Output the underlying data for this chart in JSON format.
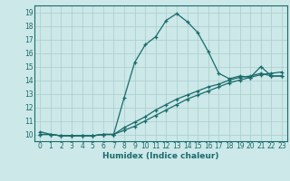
{
  "xlabel": "Humidex (Indice chaleur)",
  "background_color": "#cce8e8",
  "grid_color": "#aacccc",
  "line_color": "#1a6b6b",
  "xlim": [
    -0.5,
    23.5
  ],
  "ylim": [
    9.5,
    19.5
  ],
  "xticks": [
    0,
    1,
    2,
    3,
    4,
    5,
    6,
    7,
    8,
    9,
    10,
    11,
    12,
    13,
    14,
    15,
    16,
    17,
    18,
    19,
    20,
    21,
    22,
    23
  ],
  "yticks": [
    10,
    11,
    12,
    13,
    14,
    15,
    16,
    17,
    18,
    19
  ],
  "line1_x": [
    0,
    1,
    2,
    3,
    4,
    5,
    6,
    7,
    8,
    9,
    10,
    11,
    12,
    13,
    14,
    15,
    16,
    17,
    18,
    19,
    20,
    21,
    22,
    23
  ],
  "line1_y": [
    10.2,
    10.0,
    9.9,
    9.9,
    9.9,
    9.9,
    10.0,
    10.0,
    12.7,
    15.3,
    16.6,
    17.2,
    18.4,
    18.9,
    18.3,
    17.5,
    16.1,
    14.5,
    14.1,
    14.3,
    14.2,
    15.0,
    14.3,
    14.3
  ],
  "line2_x": [
    0,
    1,
    2,
    3,
    4,
    5,
    6,
    7,
    8,
    9,
    10,
    11,
    12,
    13,
    14,
    15,
    16,
    17,
    18,
    19,
    20,
    21,
    22,
    23
  ],
  "line2_y": [
    10.0,
    10.0,
    9.9,
    9.9,
    9.9,
    9.9,
    10.0,
    10.0,
    10.3,
    10.6,
    11.0,
    11.4,
    11.8,
    12.2,
    12.6,
    12.9,
    13.2,
    13.5,
    13.8,
    14.0,
    14.2,
    14.4,
    14.5,
    14.6
  ],
  "line3_x": [
    0,
    1,
    2,
    3,
    4,
    5,
    6,
    7,
    8,
    9,
    10,
    11,
    12,
    13,
    14,
    15,
    16,
    17,
    18,
    19,
    20,
    21,
    22,
    23
  ],
  "line3_y": [
    10.0,
    10.0,
    9.9,
    9.9,
    9.9,
    9.9,
    10.0,
    10.0,
    10.5,
    10.9,
    11.3,
    11.8,
    12.2,
    12.6,
    12.9,
    13.2,
    13.5,
    13.7,
    14.0,
    14.2,
    14.3,
    14.5,
    14.3,
    14.3
  ]
}
